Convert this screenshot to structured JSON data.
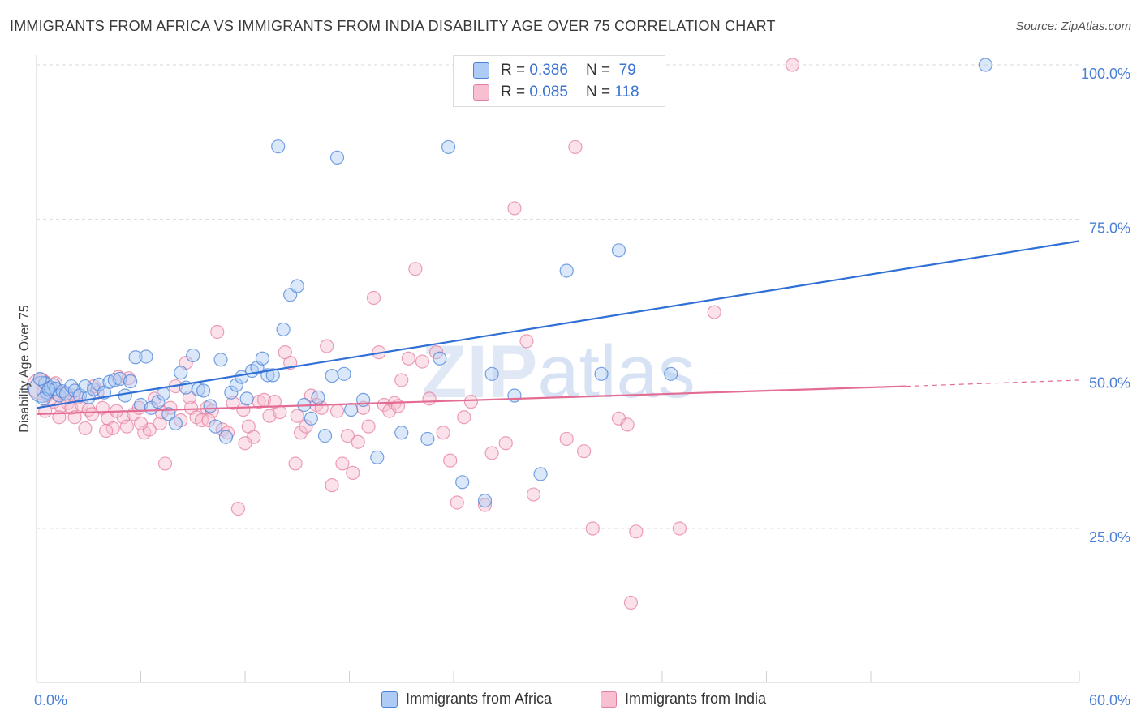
{
  "title": "IMMIGRANTS FROM AFRICA VS IMMIGRANTS FROM INDIA DISABILITY AGE OVER 75 CORRELATION CHART",
  "source": "Source: ZipAtlas.com",
  "watermark": "ZIPatlas",
  "legend": {
    "r_label": "R =",
    "n_label": "N =",
    "rows": [
      {
        "r": "0.386",
        "n": "79"
      },
      {
        "r": "0.085",
        "n": "118"
      }
    ]
  },
  "chart_data": {
    "type": "scatter",
    "title": "IMMIGRANTS FROM AFRICA VS IMMIGRANTS FROM INDIA DISABILITY AGE OVER 75 CORRELATION CHART",
    "xlabel": "",
    "ylabel": "Disability Age Over 75",
    "xlim": [
      0,
      60
    ],
    "ylim": [
      0,
      105
    ],
    "x_tick_labels": {
      "min": "0.0%",
      "max": "60.0%"
    },
    "y_ticks": [
      {
        "value": 25,
        "label": "25.0%"
      },
      {
        "value": 50,
        "label": "50.0%"
      },
      {
        "value": 75,
        "label": "75.0%"
      },
      {
        "value": 100,
        "label": "100.0%"
      }
    ],
    "colors": {
      "africa_fill": "#aecbf5",
      "africa_stroke": "#4a82d8",
      "africa_line": "#2f6fd6",
      "india_fill": "#f7bfd0",
      "india_stroke": "#e67f9f",
      "india_line": "#e46b92"
    },
    "series": [
      {
        "name": "Immigrants from Africa",
        "R": 0.386,
        "N": 79,
        "trend": {
          "x0": 0,
          "y0": 44.5,
          "x1": 60,
          "y1": 71.5
        },
        "points": [
          [
            0.3,
            47.5
          ],
          [
            0.5,
            48.5
          ],
          [
            0.6,
            47.0
          ],
          [
            0.8,
            47.8
          ],
          [
            1.0,
            48.2
          ],
          [
            1.1,
            47.6
          ],
          [
            1.3,
            46.5
          ],
          [
            1.5,
            47.2
          ],
          [
            1.7,
            46.8
          ],
          [
            2.0,
            48.0
          ],
          [
            2.2,
            47.3
          ],
          [
            2.5,
            46.5
          ],
          [
            2.8,
            48.0
          ],
          [
            3.0,
            46.2
          ],
          [
            3.3,
            47.5
          ],
          [
            3.6,
            48.3
          ],
          [
            3.9,
            47.0
          ],
          [
            4.2,
            48.7
          ],
          [
            4.5,
            49.0
          ],
          [
            4.8,
            49.2
          ],
          [
            5.1,
            46.5
          ],
          [
            5.4,
            48.8
          ],
          [
            5.7,
            52.7
          ],
          [
            6.0,
            45.0
          ],
          [
            6.3,
            52.8
          ],
          [
            6.6,
            44.5
          ],
          [
            7.0,
            45.5
          ],
          [
            7.3,
            46.8
          ],
          [
            7.6,
            43.5
          ],
          [
            8.0,
            42.0
          ],
          [
            8.3,
            50.2
          ],
          [
            8.6,
            47.8
          ],
          [
            9.0,
            53.0
          ],
          [
            9.3,
            47.5
          ],
          [
            9.6,
            47.3
          ],
          [
            10.0,
            44.8
          ],
          [
            10.3,
            41.5
          ],
          [
            10.6,
            52.3
          ],
          [
            10.9,
            39.8
          ],
          [
            11.2,
            47.0
          ],
          [
            11.5,
            48.2
          ],
          [
            11.8,
            49.5
          ],
          [
            12.1,
            46.0
          ],
          [
            12.4,
            50.5
          ],
          [
            12.7,
            51.0
          ],
          [
            13.0,
            52.5
          ],
          [
            13.3,
            49.8
          ],
          [
            13.6,
            49.8
          ],
          [
            13.9,
            86.8
          ],
          [
            14.2,
            57.2
          ],
          [
            14.6,
            62.8
          ],
          [
            15.0,
            64.2
          ],
          [
            15.4,
            45.0
          ],
          [
            15.8,
            42.8
          ],
          [
            16.2,
            46.2
          ],
          [
            16.6,
            40.0
          ],
          [
            17.0,
            49.7
          ],
          [
            17.3,
            85.0
          ],
          [
            17.7,
            50.0
          ],
          [
            18.1,
            44.2
          ],
          [
            18.8,
            45.8
          ],
          [
            19.6,
            36.5
          ],
          [
            21.0,
            40.5
          ],
          [
            22.5,
            39.5
          ],
          [
            23.2,
            52.5
          ],
          [
            23.7,
            86.7
          ],
          [
            24.5,
            32.5
          ],
          [
            25.8,
            29.5
          ],
          [
            26.2,
            50.0
          ],
          [
            27.5,
            46.5
          ],
          [
            29.0,
            33.8
          ],
          [
            30.5,
            66.7
          ],
          [
            32.5,
            50.0
          ],
          [
            33.5,
            70.0
          ],
          [
            36.5,
            50.0
          ],
          [
            54.6,
            100.0
          ],
          [
            0.2,
            49.2
          ],
          [
            0.4,
            46.0
          ],
          [
            0.7,
            47.5
          ]
        ]
      },
      {
        "name": "Immigrants from India",
        "R": 0.085,
        "N": 118,
        "trend": {
          "x0": 0,
          "y0": 43.5,
          "x1": 50,
          "y1": 48.0,
          "dash_to": 60,
          "dash_y": 49.0
        },
        "points": [
          [
            0.2,
            48.0
          ],
          [
            0.4,
            47.2
          ],
          [
            0.6,
            46.5
          ],
          [
            0.8,
            47.8
          ],
          [
            1.0,
            45.5
          ],
          [
            1.2,
            46.8
          ],
          [
            1.4,
            44.8
          ],
          [
            1.6,
            47.0
          ],
          [
            1.8,
            45.3
          ],
          [
            2.0,
            44.5
          ],
          [
            2.2,
            43.0
          ],
          [
            2.4,
            46.2
          ],
          [
            2.6,
            45.0
          ],
          [
            2.8,
            41.2
          ],
          [
            3.0,
            44.2
          ],
          [
            3.2,
            43.5
          ],
          [
            3.5,
            47.0
          ],
          [
            3.8,
            44.5
          ],
          [
            4.1,
            42.8
          ],
          [
            4.4,
            41.2
          ],
          [
            4.7,
            49.5
          ],
          [
            5.0,
            43.0
          ],
          [
            5.3,
            49.3
          ],
          [
            5.6,
            43.5
          ],
          [
            5.9,
            44.5
          ],
          [
            6.2,
            40.5
          ],
          [
            6.5,
            41.0
          ],
          [
            6.8,
            46.0
          ],
          [
            7.1,
            42.0
          ],
          [
            7.4,
            35.5
          ],
          [
            7.7,
            44.5
          ],
          [
            8.0,
            48.0
          ],
          [
            8.3,
            42.5
          ],
          [
            8.6,
            51.8
          ],
          [
            8.9,
            44.5
          ],
          [
            9.2,
            43.0
          ],
          [
            9.5,
            42.5
          ],
          [
            9.8,
            44.5
          ],
          [
            10.1,
            44.0
          ],
          [
            10.4,
            56.8
          ],
          [
            10.7,
            41.0
          ],
          [
            11.0,
            40.5
          ],
          [
            11.3,
            45.3
          ],
          [
            11.6,
            28.2
          ],
          [
            11.9,
            44.2
          ],
          [
            12.2,
            41.5
          ],
          [
            12.5,
            39.8
          ],
          [
            12.8,
            45.5
          ],
          [
            13.1,
            45.8
          ],
          [
            13.4,
            43.2
          ],
          [
            13.7,
            45.5
          ],
          [
            14.0,
            43.8
          ],
          [
            14.3,
            53.5
          ],
          [
            14.6,
            51.8
          ],
          [
            14.9,
            35.5
          ],
          [
            15.2,
            40.5
          ],
          [
            15.5,
            41.5
          ],
          [
            15.8,
            46.5
          ],
          [
            16.1,
            45.0
          ],
          [
            16.4,
            44.5
          ],
          [
            16.7,
            54.5
          ],
          [
            17.0,
            32.0
          ],
          [
            17.3,
            44.0
          ],
          [
            17.6,
            35.5
          ],
          [
            17.9,
            40.0
          ],
          [
            18.2,
            34.0
          ],
          [
            18.5,
            39.0
          ],
          [
            18.8,
            44.5
          ],
          [
            19.1,
            41.5
          ],
          [
            19.4,
            62.3
          ],
          [
            19.7,
            53.5
          ],
          [
            20.0,
            45.0
          ],
          [
            20.3,
            44.0
          ],
          [
            20.6,
            45.3
          ],
          [
            21.0,
            49.0
          ],
          [
            21.4,
            52.5
          ],
          [
            21.8,
            67.0
          ],
          [
            22.2,
            52.0
          ],
          [
            22.6,
            46.0
          ],
          [
            23.0,
            53.5
          ],
          [
            23.4,
            40.5
          ],
          [
            23.8,
            36.0
          ],
          [
            24.2,
            29.2
          ],
          [
            25.0,
            45.5
          ],
          [
            25.8,
            28.8
          ],
          [
            26.2,
            37.2
          ],
          [
            27.0,
            38.8
          ],
          [
            27.5,
            76.8
          ],
          [
            28.2,
            55.3
          ],
          [
            28.6,
            30.5
          ],
          [
            30.5,
            39.5
          ],
          [
            31.0,
            86.7
          ],
          [
            31.5,
            37.5
          ],
          [
            32.0,
            25.0
          ],
          [
            33.5,
            42.8
          ],
          [
            34.0,
            41.8
          ],
          [
            34.5,
            24.5
          ],
          [
            34.2,
            13.0
          ],
          [
            37.0,
            25.0
          ],
          [
            39.0,
            60.0
          ],
          [
            43.5,
            100.0
          ],
          [
            0.3,
            49.0
          ],
          [
            0.5,
            44.0
          ],
          [
            1.1,
            48.5
          ],
          [
            1.3,
            43.0
          ],
          [
            2.1,
            46.5
          ],
          [
            3.3,
            48.0
          ],
          [
            4.0,
            40.8
          ],
          [
            4.6,
            44.0
          ],
          [
            5.2,
            41.5
          ],
          [
            6.0,
            42.0
          ],
          [
            7.2,
            43.8
          ],
          [
            8.8,
            46.2
          ],
          [
            9.9,
            42.5
          ],
          [
            12.0,
            38.8
          ],
          [
            15.0,
            43.2
          ],
          [
            20.8,
            44.8
          ],
          [
            24.6,
            43.0
          ]
        ]
      }
    ]
  },
  "bottom_legend": [
    "Immigrants from Africa",
    "Immigrants from India"
  ]
}
